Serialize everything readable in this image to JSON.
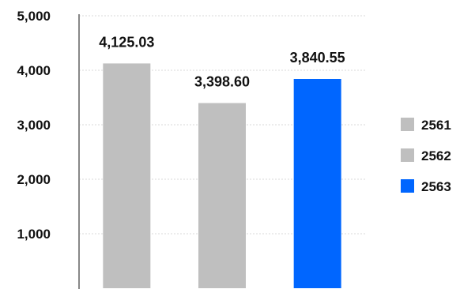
{
  "chart_data": {
    "type": "bar",
    "title": "",
    "xlabel": "",
    "ylabel": "",
    "categories": [
      "2561",
      "2562",
      "2563"
    ],
    "values": [
      4125.03,
      3398.6,
      3840.55
    ],
    "data_labels": [
      "4,125.03",
      "3,398.60",
      "3,840.55"
    ],
    "ylim": [
      0,
      5000
    ],
    "y_ticks": [
      1000,
      2000,
      3000,
      4000,
      5000
    ],
    "y_tick_labels": [
      "1,000",
      "2,000",
      "3,000",
      "4,000",
      "5,000"
    ],
    "grid": true,
    "legend_position": "right",
    "legend": [
      {
        "label": "2561",
        "color": "#bfbfbf"
      },
      {
        "label": "2562",
        "color": "#bfbfbf"
      },
      {
        "label": "2563",
        "color": "#0066ff"
      }
    ],
    "bar_colors": [
      "#bfbfbf",
      "#bfbfbf",
      "#0066ff"
    ]
  }
}
